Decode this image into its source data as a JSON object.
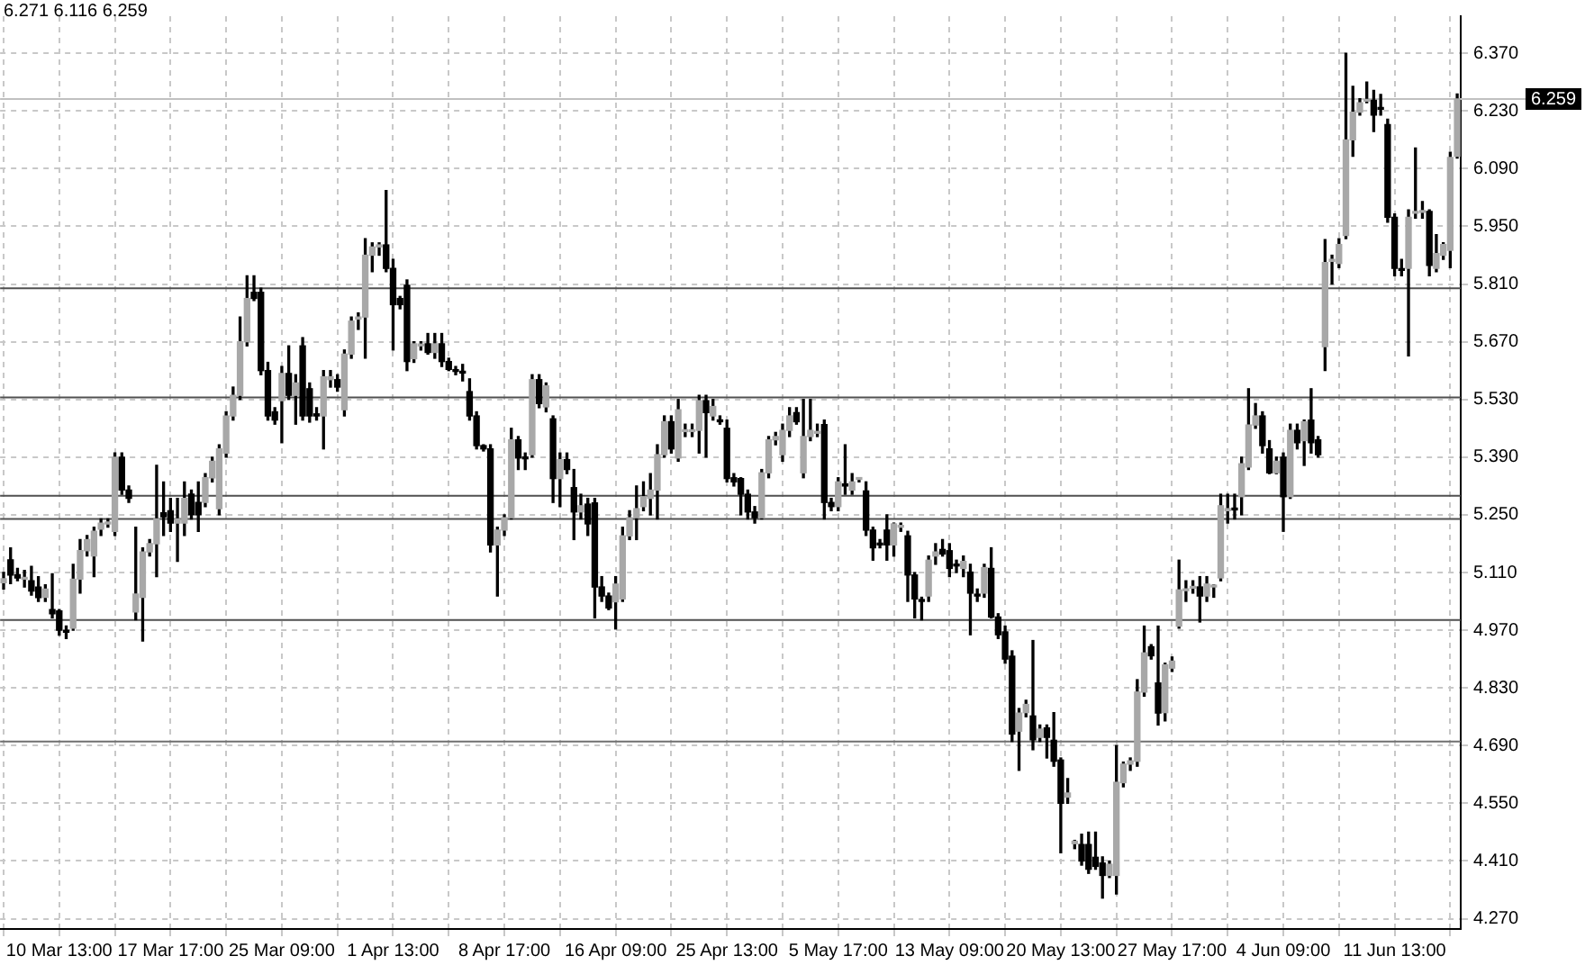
{
  "chart_data": {
    "type": "candlestick",
    "grid": true,
    "legend": false,
    "annotations": [
      "6.271 6.116 6.259"
    ],
    "categories": [
      null,
      null,
      null,
      null,
      null,
      null,
      null,
      null,
      "10 Mar 13:00",
      null,
      null,
      null,
      null,
      null,
      null,
      null,
      null,
      null,
      null,
      null,
      null,
      null,
      null,
      null,
      "17 Mar 17:00",
      null,
      null,
      null,
      null,
      null,
      null,
      null,
      null,
      null,
      null,
      null,
      null,
      null,
      null,
      null,
      "25 Mar 09:00",
      null,
      null,
      null,
      null,
      null,
      null,
      null,
      null,
      null,
      null,
      null,
      null,
      null,
      null,
      null,
      "1 Apr 13:00",
      null,
      null,
      null,
      null,
      null,
      null,
      null,
      null,
      null,
      null,
      null,
      null,
      null,
      null,
      null,
      "8 Apr 17:00",
      null,
      null,
      null,
      null,
      null,
      null,
      null,
      null,
      null,
      null,
      null,
      null,
      null,
      null,
      null,
      "16 Apr 09:00",
      null,
      null,
      null,
      null,
      null,
      null,
      null,
      null,
      null,
      null,
      null,
      null,
      null,
      null,
      null,
      "25 Apr 13:00",
      null,
      null,
      null,
      null,
      null,
      null,
      null,
      null,
      null,
      null,
      null,
      null,
      null,
      null,
      null,
      "5 May 17:00",
      null,
      null,
      null,
      null,
      null,
      null,
      null,
      null,
      null,
      null,
      null,
      null,
      null,
      null,
      null,
      "13 May 09:00",
      null,
      null,
      null,
      null,
      null,
      null,
      null,
      null,
      null,
      null,
      null,
      null,
      null,
      null,
      null,
      "20 May 13:00",
      null,
      null,
      null,
      null,
      null,
      null,
      null,
      null,
      null,
      null,
      null,
      null,
      null,
      null,
      null,
      "27 May 17:00",
      null,
      null,
      null,
      null,
      null,
      null,
      null,
      null,
      null,
      null,
      null,
      null,
      null,
      null,
      null,
      "4 Jun 09:00",
      null,
      null,
      null,
      null,
      null,
      null,
      null,
      null,
      null,
      null,
      null,
      null,
      null,
      null,
      null,
      "11 Jun 13:00",
      null,
      null,
      null,
      null,
      null,
      null,
      null,
      null,
      null
    ],
    "ohlc": [
      [
        5.085,
        5.11,
        5.07,
        5.095
      ],
      [
        5.141,
        5.17,
        5.083,
        5.104
      ],
      [
        5.105,
        5.12,
        5.09,
        5.097
      ],
      [
        5.094,
        5.115,
        5.075,
        5.096
      ],
      [
        5.09,
        5.125,
        5.055,
        5.065
      ],
      [
        5.075,
        5.1,
        5.04,
        5.049
      ],
      [
        5.05,
        5.08,
        5.04,
        5.07
      ],
      [
        5.02,
        5.107,
        5.0,
        5.01
      ],
      [
        5.017,
        5.02,
        4.958,
        4.97
      ],
      [
        4.97,
        4.98,
        4.95,
        4.965
      ],
      [
        4.975,
        5.13,
        4.97,
        5.094
      ],
      [
        5.094,
        5.19,
        5.06,
        5.163
      ],
      [
        5.163,
        5.2,
        5.15,
        5.19
      ],
      [
        5.15,
        5.22,
        5.1,
        5.21
      ],
      [
        5.215,
        5.24,
        5.2,
        5.23
      ],
      [
        5.228,
        5.24,
        5.22,
        5.23
      ],
      [
        5.21,
        5.4,
        5.2,
        5.39
      ],
      [
        5.39,
        5.4,
        5.3,
        5.31
      ],
      [
        5.31,
        5.32,
        5.28,
        5.29
      ],
      [
        5.014,
        5.22,
        4.995,
        5.058
      ],
      [
        5.05,
        5.17,
        4.944,
        5.16
      ],
      [
        5.16,
        5.19,
        5.15,
        5.18
      ],
      [
        5.18,
        5.37,
        5.1,
        5.24
      ],
      [
        5.255,
        5.33,
        5.2,
        5.245
      ],
      [
        5.26,
        5.29,
        5.21,
        5.23
      ],
      [
        5.23,
        5.29,
        5.137,
        5.24
      ],
      [
        5.23,
        5.33,
        5.2,
        5.29
      ],
      [
        5.3,
        5.31,
        5.24,
        5.25
      ],
      [
        5.28,
        5.33,
        5.21,
        5.25
      ],
      [
        5.28,
        5.35,
        5.27,
        5.34
      ],
      [
        5.34,
        5.39,
        5.33,
        5.38
      ],
      [
        5.265,
        5.42,
        5.25,
        5.41
      ],
      [
        5.4,
        5.5,
        5.39,
        5.49
      ],
      [
        5.49,
        5.56,
        5.48,
        5.54
      ],
      [
        5.54,
        5.73,
        5.53,
        5.67
      ],
      [
        5.67,
        5.83,
        5.66,
        5.775
      ],
      [
        5.79,
        5.83,
        5.77,
        5.775
      ],
      [
        5.79,
        5.8,
        5.59,
        5.6
      ],
      [
        5.6,
        5.62,
        5.48,
        5.49
      ],
      [
        5.5,
        5.51,
        5.47,
        5.48
      ],
      [
        5.527,
        5.61,
        5.425,
        5.593
      ],
      [
        5.593,
        5.66,
        5.53,
        5.54
      ],
      [
        5.54,
        5.59,
        5.47,
        5.57
      ],
      [
        5.66,
        5.68,
        5.48,
        5.49
      ],
      [
        5.556,
        5.57,
        5.475,
        5.49
      ],
      [
        5.495,
        5.51,
        5.48,
        5.49
      ],
      [
        5.49,
        5.6,
        5.41,
        5.585
      ],
      [
        5.578,
        5.6,
        5.56,
        5.585
      ],
      [
        5.578,
        5.59,
        5.55,
        5.56
      ],
      [
        5.505,
        5.65,
        5.49,
        5.64
      ],
      [
        5.64,
        5.73,
        5.63,
        5.72
      ],
      [
        5.725,
        5.74,
        5.7,
        5.73
      ],
      [
        5.73,
        5.92,
        5.63,
        5.88
      ],
      [
        5.88,
        5.91,
        5.84,
        5.9
      ],
      [
        5.9,
        5.91,
        5.88,
        5.905
      ],
      [
        5.905,
        6.037,
        5.84,
        5.848
      ],
      [
        5.848,
        5.87,
        5.65,
        5.76
      ],
      [
        5.775,
        5.78,
        5.75,
        5.76
      ],
      [
        5.807,
        5.82,
        5.6,
        5.622
      ],
      [
        5.629,
        5.67,
        5.62,
        5.665
      ],
      [
        5.66,
        5.67,
        5.65,
        5.662
      ],
      [
        5.665,
        5.69,
        5.64,
        5.644
      ],
      [
        5.644,
        5.69,
        5.63,
        5.665
      ],
      [
        5.665,
        5.69,
        5.61,
        5.622
      ],
      [
        5.622,
        5.63,
        5.6,
        5.603
      ],
      [
        5.6,
        5.61,
        5.59,
        5.598
      ],
      [
        5.597,
        5.615,
        5.575,
        5.594
      ],
      [
        5.549,
        5.58,
        5.48,
        5.49
      ],
      [
        5.49,
        5.5,
        5.41,
        5.418
      ],
      [
        5.418,
        5.42,
        5.405,
        5.41
      ],
      [
        5.41,
        5.42,
        5.16,
        5.177
      ],
      [
        5.177,
        5.22,
        5.053,
        5.213
      ],
      [
        5.213,
        5.25,
        5.2,
        5.243
      ],
      [
        5.243,
        5.46,
        5.24,
        5.432
      ],
      [
        5.432,
        5.44,
        5.36,
        5.388
      ],
      [
        5.388,
        5.4,
        5.36,
        5.386
      ],
      [
        5.396,
        5.59,
        5.39,
        5.578
      ],
      [
        5.578,
        5.59,
        5.51,
        5.52
      ],
      [
        5.512,
        5.57,
        5.5,
        5.563
      ],
      [
        5.483,
        5.49,
        5.28,
        5.338
      ],
      [
        5.338,
        5.4,
        5.27,
        5.384
      ],
      [
        5.384,
        5.4,
        5.35,
        5.36
      ],
      [
        5.316,
        5.36,
        5.19,
        5.257
      ],
      [
        5.257,
        5.3,
        5.24,
        5.272
      ],
      [
        5.276,
        5.29,
        5.2,
        5.228
      ],
      [
        5.279,
        5.29,
        5.0,
        5.075
      ],
      [
        5.075,
        5.1,
        5.04,
        5.053
      ],
      [
        5.053,
        5.06,
        5.02,
        5.024
      ],
      [
        5.039,
        5.1,
        4.973,
        5.082
      ],
      [
        5.046,
        5.22,
        5.04,
        5.199
      ],
      [
        5.199,
        5.26,
        5.19,
        5.243
      ],
      [
        5.243,
        5.32,
        5.19,
        5.265
      ],
      [
        5.27,
        5.33,
        5.26,
        5.294
      ],
      [
        5.29,
        5.35,
        5.25,
        5.31
      ],
      [
        5.31,
        5.42,
        5.24,
        5.396
      ],
      [
        5.396,
        5.49,
        5.39,
        5.476
      ],
      [
        5.476,
        5.49,
        5.4,
        5.41
      ],
      [
        5.388,
        5.53,
        5.38,
        5.505
      ],
      [
        5.452,
        5.47,
        5.44,
        5.455
      ],
      [
        5.452,
        5.47,
        5.44,
        5.455
      ],
      [
        5.455,
        5.54,
        5.4,
        5.527
      ],
      [
        5.527,
        5.54,
        5.39,
        5.498
      ],
      [
        5.49,
        5.53,
        5.48,
        5.513
      ],
      [
        5.478,
        5.49,
        5.47,
        5.476
      ],
      [
        5.46,
        5.48,
        5.33,
        5.338
      ],
      [
        5.34,
        5.35,
        5.32,
        5.33
      ],
      [
        5.338,
        5.34,
        5.25,
        5.3
      ],
      [
        5.3,
        5.31,
        5.24,
        5.257
      ],
      [
        5.257,
        5.27,
        5.23,
        5.243
      ],
      [
        5.243,
        5.36,
        5.24,
        5.352
      ],
      [
        5.352,
        5.44,
        5.34,
        5.432
      ],
      [
        5.432,
        5.45,
        5.42,
        5.44
      ],
      [
        5.396,
        5.47,
        5.38,
        5.455
      ],
      [
        5.455,
        5.51,
        5.44,
        5.49
      ],
      [
        5.498,
        5.51,
        5.47,
        5.476
      ],
      [
        5.352,
        5.53,
        5.34,
        5.44
      ],
      [
        5.44,
        5.53,
        5.43,
        5.455
      ],
      [
        5.448,
        5.47,
        5.44,
        5.452
      ],
      [
        5.469,
        5.48,
        5.24,
        5.28
      ],
      [
        5.28,
        5.29,
        5.26,
        5.27
      ],
      [
        5.27,
        5.34,
        5.26,
        5.33
      ],
      [
        5.325,
        5.42,
        5.3,
        5.32
      ],
      [
        5.31,
        5.35,
        5.3,
        5.33
      ],
      [
        5.336,
        5.34,
        5.33,
        5.337
      ],
      [
        5.308,
        5.33,
        5.2,
        5.213
      ],
      [
        5.213,
        5.22,
        5.14,
        5.17
      ],
      [
        5.178,
        5.19,
        5.17,
        5.177
      ],
      [
        5.213,
        5.25,
        5.14,
        5.177
      ],
      [
        5.177,
        5.23,
        5.15,
        5.228
      ],
      [
        5.22,
        5.23,
        5.21,
        5.222
      ],
      [
        5.199,
        5.21,
        5.04,
        5.104
      ],
      [
        5.104,
        5.11,
        5.0,
        5.046
      ],
      [
        5.042,
        5.05,
        4.995,
        5.04
      ],
      [
        5.053,
        5.15,
        5.04,
        5.14
      ],
      [
        5.15,
        5.18,
        5.13,
        5.16
      ],
      [
        5.166,
        5.19,
        5.15,
        5.155
      ],
      [
        5.163,
        5.18,
        5.1,
        5.12
      ],
      [
        5.127,
        5.14,
        5.11,
        5.126
      ],
      [
        5.12,
        5.15,
        5.1,
        5.137
      ],
      [
        5.111,
        5.13,
        4.959,
        5.06
      ],
      [
        5.054,
        5.07,
        5.04,
        5.053
      ],
      [
        5.06,
        5.13,
        5.05,
        5.122
      ],
      [
        5.12,
        5.17,
        5.0,
        5.002
      ],
      [
        5.002,
        5.01,
        4.95,
        4.959
      ],
      [
        4.966,
        4.98,
        4.89,
        4.9
      ],
      [
        4.907,
        4.92,
        4.7,
        4.718
      ],
      [
        4.725,
        4.78,
        4.63,
        4.769
      ],
      [
        4.77,
        4.8,
        4.76,
        4.79
      ],
      [
        4.762,
        4.945,
        4.68,
        4.704
      ],
      [
        4.71,
        4.74,
        4.7,
        4.73
      ],
      [
        4.733,
        4.74,
        4.66,
        4.71
      ],
      [
        4.703,
        4.77,
        4.64,
        4.652
      ],
      [
        4.655,
        4.66,
        4.43,
        4.55
      ],
      [
        4.565,
        4.61,
        4.55,
        4.575
      ],
      [
        4.452,
        4.46,
        4.44,
        4.458
      ],
      [
        4.45,
        4.475,
        4.4,
        4.41
      ],
      [
        4.45,
        4.48,
        4.38,
        4.39
      ],
      [
        4.419,
        4.48,
        4.39,
        4.397
      ],
      [
        4.405,
        4.42,
        4.32,
        4.375
      ],
      [
        4.375,
        4.41,
        4.37,
        4.402
      ],
      [
        4.375,
        4.69,
        4.33,
        4.601
      ],
      [
        4.6,
        4.65,
        4.59,
        4.645
      ],
      [
        4.645,
        4.66,
        4.63,
        4.653
      ],
      [
        4.652,
        4.85,
        4.64,
        4.82
      ],
      [
        4.82,
        4.98,
        4.81,
        4.915
      ],
      [
        4.93,
        4.935,
        4.9,
        4.908
      ],
      [
        4.842,
        4.98,
        4.74,
        4.769
      ],
      [
        4.77,
        4.89,
        4.75,
        4.886
      ],
      [
        4.878,
        4.905,
        4.87,
        4.895
      ],
      [
        4.98,
        5.14,
        4.975,
        5.068
      ],
      [
        5.066,
        5.09,
        5.04,
        5.068
      ],
      [
        5.072,
        5.09,
        5.06,
        5.075
      ],
      [
        5.075,
        5.1,
        4.99,
        5.053
      ],
      [
        5.053,
        5.1,
        5.04,
        5.082
      ],
      [
        5.075,
        5.08,
        5.05,
        5.077
      ],
      [
        5.097,
        5.3,
        5.09,
        5.272
      ],
      [
        5.26,
        5.3,
        5.23,
        5.265
      ],
      [
        5.263,
        5.3,
        5.24,
        5.262
      ],
      [
        5.294,
        5.39,
        5.25,
        5.374
      ],
      [
        5.366,
        5.556,
        5.36,
        5.468
      ],
      [
        5.468,
        5.52,
        5.46,
        5.49
      ],
      [
        5.49,
        5.5,
        5.4,
        5.418
      ],
      [
        5.41,
        5.43,
        5.35,
        5.352
      ],
      [
        5.352,
        5.39,
        5.35,
        5.38
      ],
      [
        5.39,
        5.4,
        5.21,
        5.294
      ],
      [
        5.294,
        5.47,
        5.29,
        5.455
      ],
      [
        5.455,
        5.47,
        5.41,
        5.425
      ],
      [
        5.43,
        5.48,
        5.37,
        5.476
      ],
      [
        5.48,
        5.556,
        5.4,
        5.425
      ],
      [
        5.432,
        5.44,
        5.39,
        5.396
      ],
      [
        5.658,
        5.918,
        5.6,
        5.862
      ],
      [
        5.865,
        5.88,
        5.81,
        5.87
      ],
      [
        5.86,
        5.92,
        5.85,
        5.906
      ],
      [
        5.928,
        6.37,
        5.92,
        6.16
      ],
      [
        6.16,
        6.29,
        6.12,
        6.227
      ],
      [
        6.227,
        6.26,
        6.22,
        6.25
      ],
      [
        6.254,
        6.3,
        6.25,
        6.256
      ],
      [
        6.256,
        6.28,
        6.18,
        6.22
      ],
      [
        6.236,
        6.27,
        6.22,
        6.234
      ],
      [
        6.197,
        6.21,
        5.96,
        5.972
      ],
      [
        5.972,
        5.98,
        5.83,
        5.848
      ],
      [
        5.847,
        5.87,
        5.83,
        5.843
      ],
      [
        5.848,
        5.99,
        5.636,
        5.972
      ],
      [
        5.982,
        6.14,
        5.97,
        5.986
      ],
      [
        5.984,
        6.01,
        5.97,
        5.986
      ],
      [
        5.986,
        5.99,
        5.83,
        5.855
      ],
      [
        5.848,
        5.93,
        5.84,
        5.884
      ],
      [
        5.88,
        5.91,
        5.87,
        5.906
      ],
      [
        5.892,
        6.13,
        5.85,
        6.117
      ],
      [
        6.12,
        6.271,
        6.116,
        6.259
      ]
    ],
    "ylim": [
      4.245,
      6.46
    ],
    "yticks": [
      {
        "value": 4.27,
        "label": "4.270"
      },
      {
        "value": 4.41,
        "label": "4.410"
      },
      {
        "value": 4.55,
        "label": "4.550"
      },
      {
        "value": 4.69,
        "label": "4.690"
      },
      {
        "value": 4.83,
        "label": "4.830"
      },
      {
        "value": 4.97,
        "label": "4.970"
      },
      {
        "value": 5.11,
        "label": "5.110"
      },
      {
        "value": 5.25,
        "label": "5.250"
      },
      {
        "value": 5.39,
        "label": "5.390"
      },
      {
        "value": 5.53,
        "label": "5.530"
      },
      {
        "value": 5.67,
        "label": "5.670"
      },
      {
        "value": 5.81,
        "label": "5.810"
      },
      {
        "value": 5.95,
        "label": "5.950"
      },
      {
        "value": 6.09,
        "label": "6.090"
      },
      {
        "value": 6.23,
        "label": "6.230"
      },
      {
        "value": 6.37,
        "label": "6.370"
      }
    ],
    "ref_lines": [
      {
        "axis": "y",
        "value": 6.259,
        "label": "6.259",
        "color": "#c0c0c0"
      },
      {
        "axis": "y",
        "value": 5.8,
        "color": "#505050"
      },
      {
        "axis": "y",
        "value": 5.535,
        "color": "#505050"
      },
      {
        "axis": "y",
        "value": 5.296,
        "color": "#505050"
      },
      {
        "axis": "y",
        "value": 5.24,
        "color": "#505050"
      },
      {
        "axis": "y",
        "value": 4.995,
        "color": "#505050"
      },
      {
        "axis": "y",
        "value": 4.7,
        "color": "#707070"
      }
    ]
  }
}
